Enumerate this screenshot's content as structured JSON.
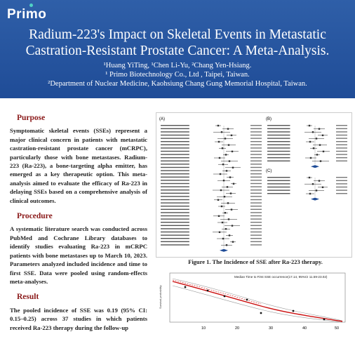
{
  "logo": {
    "text": "Primo"
  },
  "header": {
    "title_line1": "Radium-223's Impact on Skeletal Events in Metastatic",
    "title_line2": "Castration-Resistant Prostate Cancer: A Meta-Analysis.",
    "authors": "¹Huang YiTing,   ¹Chen Li-Yu, ²Chang Yen-Hsiang.",
    "affiliation1": "¹ Primo Biotechnology Co., Ltd , Taipei, Taiwan.",
    "affiliation2": "²Department of Nuclear Medicine, Kaohsiung Chang Gung Memorial Hospital, Taiwan."
  },
  "sections": {
    "purpose_title": "Purpose",
    "purpose_text": "Symptomatic skeletal events (SSEs) represent a major clinical concern in patients with metastatic castration-resistant prostate cancer (mCRPC), particularly those with bone metastases. Radium-223 (Ra-223), a bone-targeting alpha emitter, has emerged as a key therapeutic option. This meta-analysis aimed to evaluate the efficacy of Ra-223 in delaying SSEs based on a comprehensive analysis of clinical outcomes.",
    "procedure_title": "Procedure",
    "procedure_text": "A systematic literature search was conducted across PubMed and Cochrane Library databases to identify studies evaluating Ra-223 in mCRPC patients with bone metastases up to March 10, 2023. Parameters analyzed included incidence and time to first SSE. Data were pooled using random-effects meta-analyses.",
    "result_title": "Result",
    "result_text": "The pooled incidence of SSE was 0.19 (95% CI: 0.15–0.25) across 37 studies in which patients received Ra-223 therapy during the follow-up"
  },
  "figure": {
    "caption": "Figure 1. The Incidence of SSE after Ra-223 therapy.",
    "panel_a": "(A)",
    "panel_b": "(B)",
    "panel_c": "(C)",
    "km_title": "Median Time to First SSE occurrence(17.14, 95%CI 11.59-23.02)",
    "x_ticks": [
      "10",
      "20",
      "30",
      "40",
      "50"
    ],
    "y_label": "Survival probability"
  },
  "colors": {
    "banner": "#1f4c97",
    "section_heading": "#8b1a1a",
    "curve": "#cc1111"
  }
}
